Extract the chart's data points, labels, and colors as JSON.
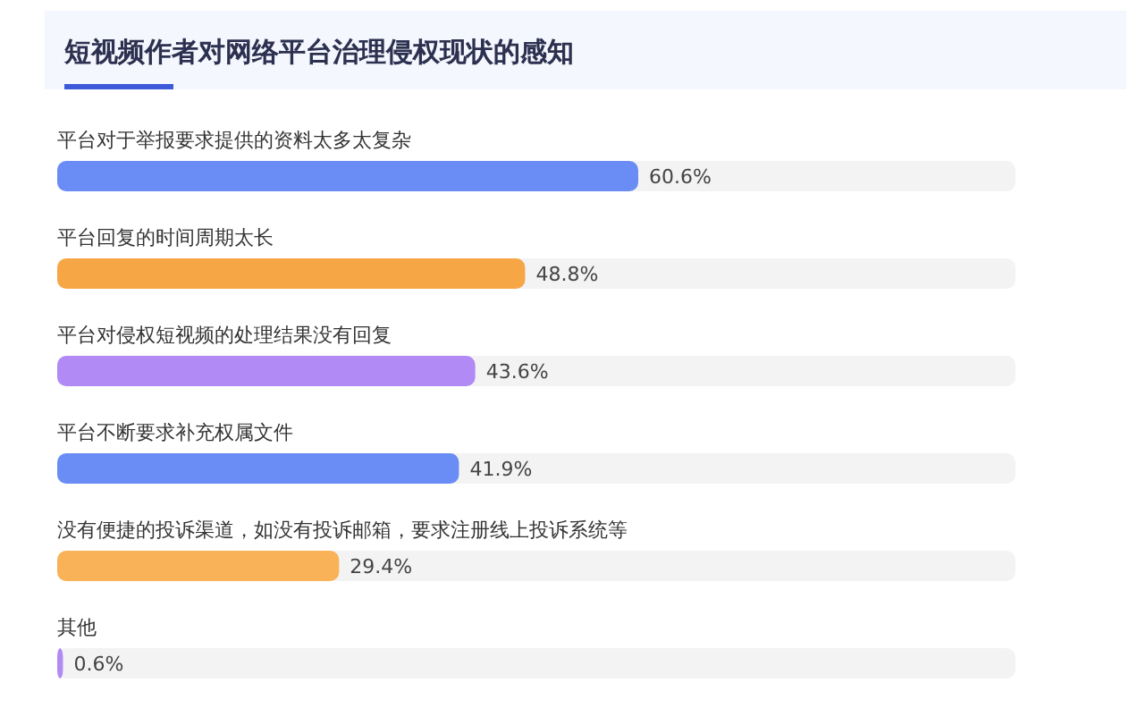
{
  "chart_data": {
    "type": "bar",
    "orientation": "horizontal",
    "title": "短视频作者对网络平台治理侵权现状的感知",
    "categories": [
      "平台对于举报要求提供的资料太多太复杂",
      "平台回复的时间周期太长",
      "平台对侵权短视频的处理结果没有回复",
      "平台不断要求补充权属文件",
      "没有便捷的投诉渠道，如没有投诉邮箱，要求注册线上投诉系统等",
      "其他"
    ],
    "values": [
      60.6,
      48.8,
      43.6,
      41.9,
      29.4,
      0.6
    ],
    "value_labels": [
      "60.6%",
      "48.8%",
      "43.6%",
      "41.9%",
      "29.4%",
      "0.6%"
    ],
    "colors": [
      "#6a8df5",
      "#f7a646",
      "#b28af5",
      "#6a8df5",
      "#f9b257",
      "#b28af5"
    ]
  }
}
